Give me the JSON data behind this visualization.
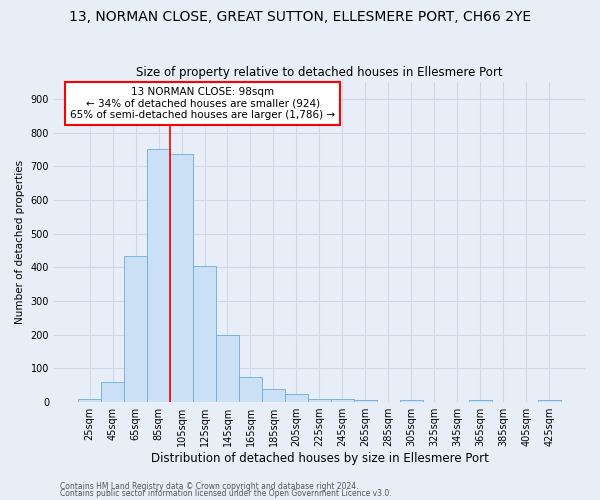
{
  "title": "13, NORMAN CLOSE, GREAT SUTTON, ELLESMERE PORT, CH66 2YE",
  "subtitle": "Size of property relative to detached houses in Ellesmere Port",
  "xlabel": "Distribution of detached houses by size in Ellesmere Port",
  "ylabel": "Number of detached properties",
  "footnote1": "Contains HM Land Registry data © Crown copyright and database right 2024.",
  "footnote2": "Contains public sector information licensed under the Open Government Licence v3.0.",
  "bin_labels": [
    "25sqm",
    "45sqm",
    "65sqm",
    "85sqm",
    "105sqm",
    "125sqm",
    "145sqm",
    "165sqm",
    "185sqm",
    "205sqm",
    "225sqm",
    "245sqm",
    "265sqm",
    "285sqm",
    "305sqm",
    "325sqm",
    "345sqm",
    "365sqm",
    "385sqm",
    "405sqm",
    "425sqm"
  ],
  "bar_values": [
    10,
    60,
    435,
    750,
    735,
    405,
    200,
    75,
    40,
    25,
    10,
    10,
    5,
    0,
    5,
    0,
    0,
    5,
    0,
    0,
    5
  ],
  "bar_color": "#cce0f5",
  "bar_edge_color": "#6aaed6",
  "red_line_bin": 4,
  "annotation_line1": "13 NORMAN CLOSE: 98sqm",
  "annotation_line2": "← 34% of detached houses are smaller (924)",
  "annotation_line3": "65% of semi-detached houses are larger (1,786) →",
  "annotation_box_facecolor": "white",
  "annotation_box_edgecolor": "red",
  "ylim_max": 950,
  "background_color": "#e8eef8",
  "grid_color": "#d0d8e8",
  "title_fontsize": 10,
  "subtitle_fontsize": 8.5,
  "ylabel_fontsize": 7.5,
  "xlabel_fontsize": 8.5,
  "tick_fontsize": 7,
  "annotation_fontsize": 7.5,
  "footnote_fontsize": 5.5,
  "yticks": [
    0,
    100,
    200,
    300,
    400,
    500,
    600,
    700,
    800,
    900
  ]
}
